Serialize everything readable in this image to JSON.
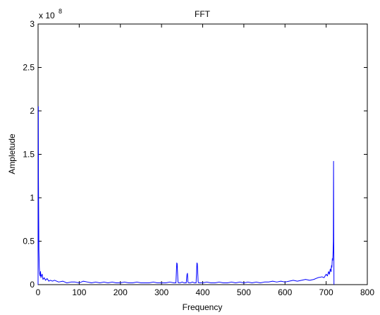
{
  "chart_data": {
    "type": "line",
    "title": "FFT",
    "xlabel": "Frequency",
    "ylabel": "Ampletude",
    "y_exponent_label": "x 10",
    "y_exponent_power": "8",
    "xlim": [
      0,
      800
    ],
    "ylim": [
      0,
      3
    ],
    "x_ticks": [
      0,
      100,
      200,
      300,
      400,
      500,
      600,
      700,
      800
    ],
    "x_tick_labels": [
      "0",
      "100",
      "200",
      "300",
      "400",
      "500",
      "600",
      "700",
      "800"
    ],
    "y_ticks": [
      0,
      0.5,
      1,
      1.5,
      2,
      2.5,
      3
    ],
    "y_tick_labels": [
      "0",
      "0.5",
      "1",
      "1.5",
      "2",
      "2.5",
      "3"
    ],
    "grid": false,
    "line_color": "#0000ff",
    "series": [
      {
        "x": [
          0,
          0.6,
          1,
          2,
          3,
          4,
          5,
          6,
          7,
          8,
          10,
          12,
          15,
          18,
          22,
          26,
          30,
          35,
          40,
          50,
          60,
          70,
          80,
          90,
          100,
          110,
          120,
          130,
          140,
          150,
          160,
          170,
          180,
          190,
          200,
          210,
          220,
          230,
          240,
          250,
          260,
          270,
          280,
          290,
          300,
          310,
          320,
          330,
          335,
          337,
          338,
          340,
          341,
          345,
          350,
          355,
          360,
          362,
          363,
          364,
          366,
          370,
          375,
          380,
          384,
          386,
          387,
          389,
          390,
          395,
          400,
          410,
          420,
          430,
          440,
          450,
          460,
          470,
          480,
          490,
          500,
          510,
          520,
          530,
          540,
          550,
          560,
          570,
          580,
          590,
          600,
          610,
          620,
          630,
          640,
          650,
          660,
          670,
          680,
          690,
          695,
          700,
          703,
          706,
          708,
          710,
          712,
          713,
          714,
          715,
          716,
          717,
          717.5,
          718,
          718.5,
          719
        ],
        "values": [
          0,
          2.05,
          1.2,
          0.4,
          0.2,
          0.12,
          0.1,
          0.15,
          0.08,
          0.1,
          0.12,
          0.06,
          0.08,
          0.05,
          0.07,
          0.04,
          0.05,
          0.04,
          0.05,
          0.03,
          0.04,
          0.02,
          0.03,
          0.03,
          0.02,
          0.04,
          0.03,
          0.02,
          0.03,
          0.02,
          0.03,
          0.02,
          0.03,
          0.02,
          0.02,
          0.03,
          0.02,
          0.02,
          0.03,
          0.02,
          0.02,
          0.02,
          0.03,
          0.02,
          0.02,
          0.02,
          0.03,
          0.02,
          0.02,
          0.25,
          0.24,
          0.03,
          0.02,
          0.02,
          0.03,
          0.02,
          0.02,
          0.12,
          0.13,
          0.03,
          0.02,
          0.02,
          0.03,
          0.02,
          0.02,
          0.25,
          0.24,
          0.03,
          0.02,
          0.02,
          0.02,
          0.03,
          0.02,
          0.02,
          0.03,
          0.02,
          0.02,
          0.03,
          0.02,
          0.03,
          0.02,
          0.03,
          0.02,
          0.03,
          0.02,
          0.03,
          0.03,
          0.04,
          0.03,
          0.04,
          0.03,
          0.04,
          0.05,
          0.04,
          0.05,
          0.06,
          0.05,
          0.06,
          0.08,
          0.09,
          0.08,
          0.12,
          0.1,
          0.15,
          0.12,
          0.18,
          0.15,
          0.22,
          0.2,
          0.3,
          0.28,
          0.4,
          0.5,
          1.42,
          0.6,
          0
        ]
      }
    ]
  }
}
